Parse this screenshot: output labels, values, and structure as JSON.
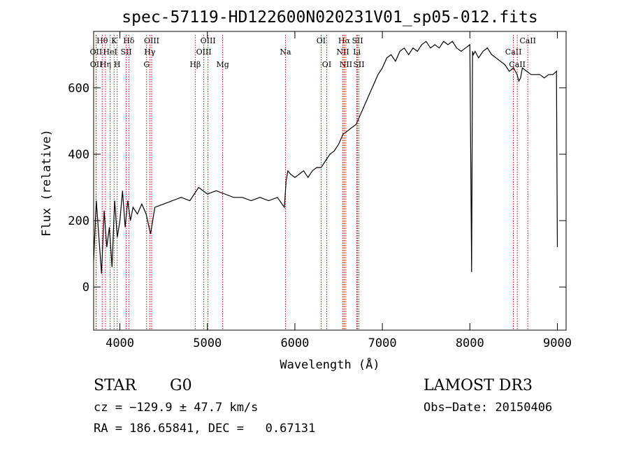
{
  "chart_data": {
    "type": "line",
    "title": "spec-57119-HD122600N020231V01_sp05-012.fits",
    "xlabel": "Wavelength (Å)",
    "ylabel": "Flux (relative)",
    "xlim": [
      3700,
      9100
    ],
    "ylim": [
      -130,
      770
    ],
    "xticks": [
      4000,
      5000,
      6000,
      7000,
      8000,
      9000
    ],
    "yticks": [
      0,
      200,
      400,
      600
    ],
    "grid": false,
    "line_color": "#000000",
    "marker_color": "#cc0000",
    "series": [
      {
        "x": [
          3700,
          3730,
          3760,
          3790,
          3820,
          3850,
          3880,
          3910,
          3940,
          3970,
          4000,
          4030,
          4060,
          4090,
          4120,
          4150,
          4200,
          4250,
          4300,
          4350,
          4400,
          4500,
          4600,
          4700,
          4800,
          4900,
          5000,
          5100,
          5200,
          5300,
          5400,
          5500,
          5600,
          5700,
          5800,
          5880,
          5900,
          5920,
          5950,
          6000,
          6050,
          6100,
          6150,
          6200,
          6250,
          6300,
          6350,
          6400,
          6450,
          6500,
          6550,
          6600,
          6650,
          6700,
          6750,
          6800,
          6850,
          6900,
          6950,
          7000,
          7050,
          7100,
          7150,
          7200,
          7250,
          7300,
          7350,
          7400,
          7450,
          7500,
          7550,
          7600,
          7650,
          7700,
          7750,
          7800,
          7850,
          7900,
          7950,
          8000,
          8020,
          8030,
          8040,
          8060,
          8100,
          8150,
          8200,
          8250,
          8300,
          8350,
          8400,
          8450,
          8500,
          8540,
          8560,
          8580,
          8600,
          8650,
          8700,
          8750,
          8800,
          8850,
          8900,
          8950,
          8990,
          9000
        ],
        "y": [
          80,
          260,
          150,
          40,
          230,
          120,
          180,
          60,
          260,
          150,
          200,
          290,
          180,
          260,
          200,
          240,
          220,
          250,
          220,
          160,
          240,
          250,
          260,
          270,
          260,
          300,
          280,
          290,
          280,
          270,
          270,
          260,
          270,
          260,
          270,
          240,
          320,
          350,
          340,
          330,
          340,
          350,
          330,
          350,
          360,
          360,
          380,
          400,
          410,
          430,
          460,
          470,
          480,
          490,
          520,
          550,
          580,
          610,
          640,
          660,
          690,
          700,
          680,
          710,
          720,
          700,
          720,
          710,
          730,
          740,
          720,
          730,
          720,
          740,
          730,
          740,
          720,
          710,
          720,
          730,
          45,
          710,
          700,
          710,
          690,
          710,
          720,
          700,
          690,
          680,
          670,
          650,
          660,
          640,
          620,
          630,
          660,
          650,
          640,
          640,
          640,
          630,
          640,
          640,
          650,
          120
        ],
        "marker_color": "#000000"
      }
    ],
    "line_markers": [
      {
        "label": "Hθ",
        "x": 3798,
        "row": 1
      },
      {
        "label": "OII",
        "x": 3727,
        "row": 2
      },
      {
        "label": "OII",
        "x": 3729,
        "row": 3
      },
      {
        "label": "Hη",
        "x": 3835,
        "row": 3
      },
      {
        "label": "K",
        "x": 3934,
        "row": 1
      },
      {
        "label": "HeI",
        "x": 3889,
        "row": 2
      },
      {
        "label": "H",
        "x": 3969,
        "row": 3
      },
      {
        "label": "SII",
        "x": 4072,
        "row": 2
      },
      {
        "label": "Hδ",
        "x": 4102,
        "row": 1
      },
      {
        "label": "OIII",
        "x": 4363,
        "row": 1
      },
      {
        "label": "Hγ",
        "x": 4341,
        "row": 2
      },
      {
        "label": "G",
        "x": 4305,
        "row": 3
      },
      {
        "label": "Hβ",
        "x": 4861,
        "row": 3
      },
      {
        "label": "OIII",
        "x": 5007,
        "row": 1
      },
      {
        "label": "OIII",
        "x": 4959,
        "row": 2
      },
      {
        "label": "Mg",
        "x": 5175,
        "row": 3
      },
      {
        "label": "Na",
        "x": 5893,
        "row": 2
      },
      {
        "label": "OI",
        "x": 6300,
        "row": 1
      },
      {
        "label": "OI",
        "x": 6364,
        "row": 3
      },
      {
        "label": "Hα",
        "x": 6563,
        "row": 1
      },
      {
        "label": "NII",
        "x": 6548,
        "row": 2
      },
      {
        "label": "NII",
        "x": 6583,
        "row": 3
      },
      {
        "label": "SII",
        "x": 6716,
        "row": 1
      },
      {
        "label": "Li",
        "x": 6708,
        "row": 2
      },
      {
        "label": "SII",
        "x": 6731,
        "row": 3
      },
      {
        "label": "CaII",
        "x": 8662,
        "row": 1
      },
      {
        "label": "CaII",
        "x": 8498,
        "row": 2
      },
      {
        "label": "CaII",
        "x": 8542,
        "row": 3
      }
    ]
  },
  "info": {
    "object_type": "STAR",
    "object_class": "G0",
    "survey": "LAMOST DR3",
    "cz": "cz = −129.9 ± 47.7 km/s",
    "obs_date": "Obs−Date: 20150406",
    "radec": "RA = 186.65841, DEC =   0.67131"
  }
}
